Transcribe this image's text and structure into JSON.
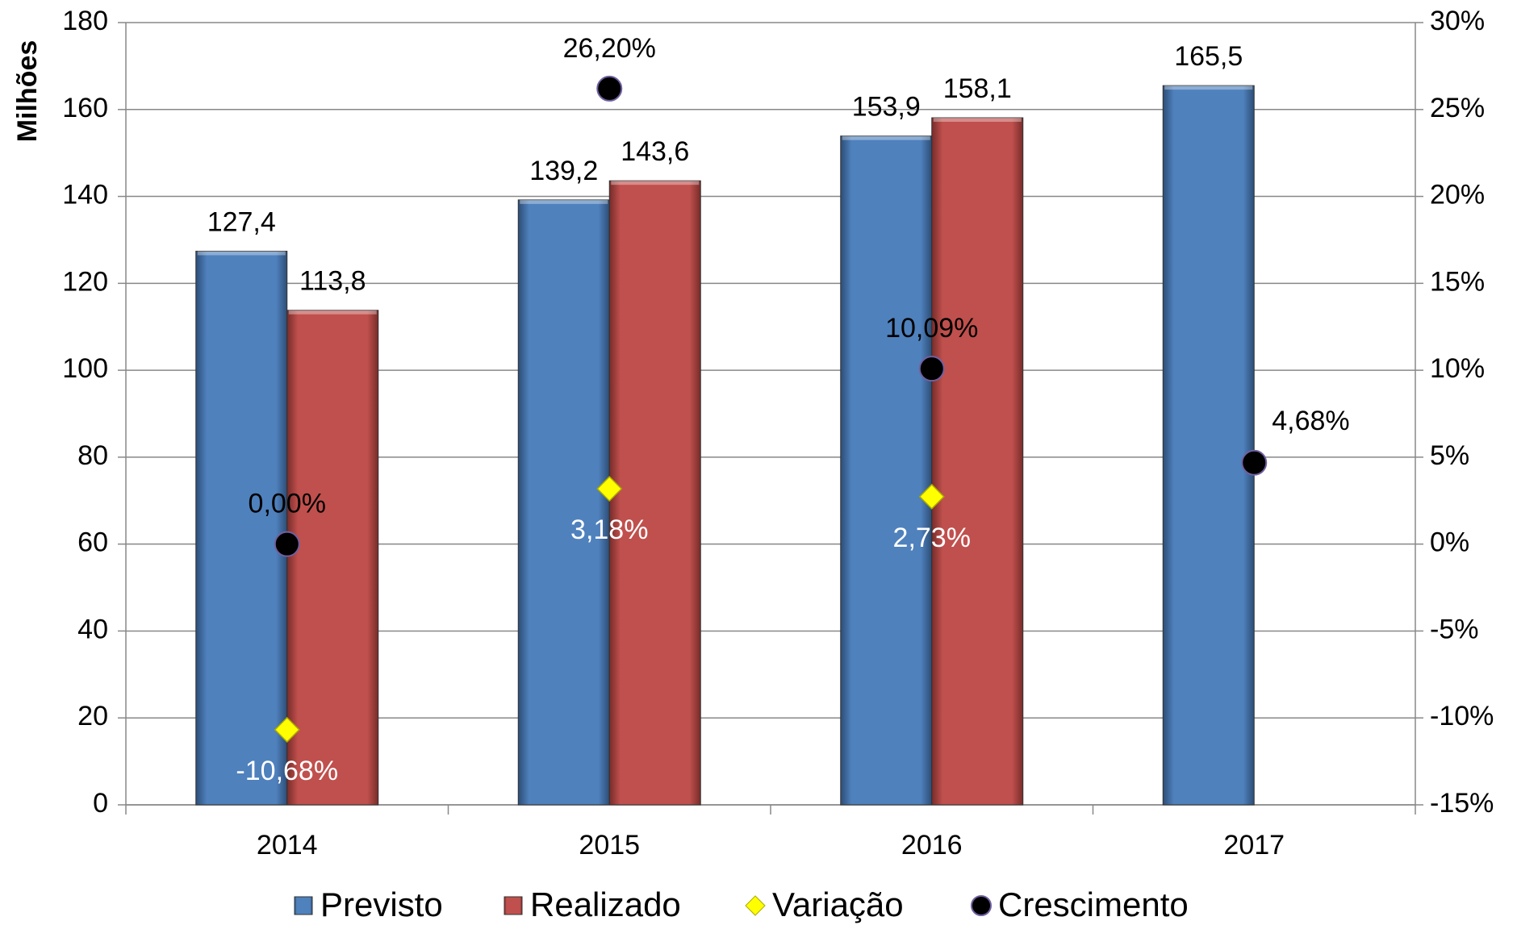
{
  "chart_data": {
    "type": "bar",
    "ylabel": "Milhões",
    "categories": [
      "2014",
      "2015",
      "2016",
      "2017"
    ],
    "ylim": [
      0,
      180
    ],
    "yticks": [
      0,
      20,
      40,
      60,
      80,
      100,
      120,
      140,
      160,
      180
    ],
    "y2lim": [
      -15,
      30
    ],
    "y2ticks": [
      {
        "value": -15,
        "label": "-15%"
      },
      {
        "value": -10,
        "label": "-10%"
      },
      {
        "value": -5,
        "label": "-5%"
      },
      {
        "value": 0,
        "label": "0%"
      },
      {
        "value": 5,
        "label": "5%"
      },
      {
        "value": 10,
        "label": "10%"
      },
      {
        "value": 15,
        "label": "15%"
      },
      {
        "value": 20,
        "label": "20%"
      },
      {
        "value": 25,
        "label": "25%"
      },
      {
        "value": 30,
        "label": "30%"
      }
    ],
    "grid": true,
    "legend": "bottom",
    "series": [
      {
        "name": "Previsto",
        "type": "bar",
        "color": "#4f81bd",
        "values": [
          127.4,
          139.2,
          153.9,
          165.5
        ],
        "value_labels": [
          "127,4",
          "139,2",
          "153,9",
          "165,5"
        ]
      },
      {
        "name": "Realizado",
        "type": "bar",
        "color": "#c0504d",
        "values": [
          113.8,
          143.6,
          158.1,
          null
        ],
        "value_labels": [
          "113,8",
          "143,6",
          "158,1",
          null
        ]
      },
      {
        "name": "Variação",
        "type": "diamond",
        "axis": "y2",
        "color": "#ffff00",
        "values": [
          -10.68,
          3.18,
          2.73,
          null
        ],
        "value_labels": [
          "-10,68%",
          "3,18%",
          "2,73%",
          null
        ]
      },
      {
        "name": "Crescimento",
        "type": "circle",
        "axis": "y2",
        "color": "#000000",
        "values": [
          0,
          26.2,
          10.09,
          4.68
        ],
        "value_labels": [
          "0,00%",
          "26,20%",
          "10,09%",
          "4,68%"
        ]
      }
    ]
  }
}
